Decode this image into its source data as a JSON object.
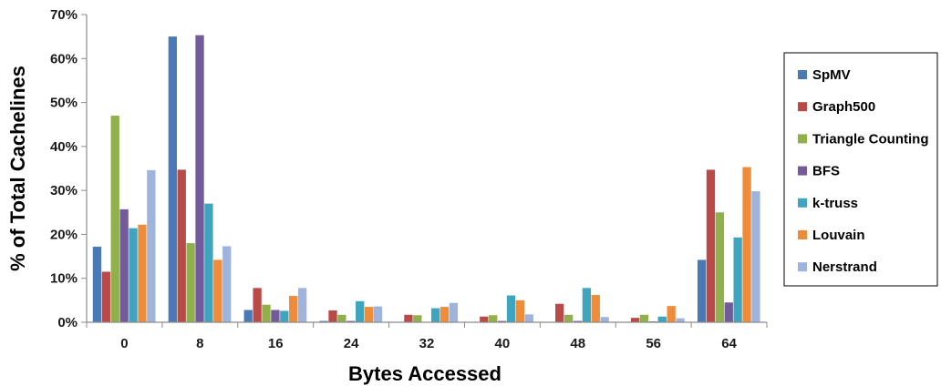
{
  "chart_data": {
    "type": "bar",
    "xlabel": "Bytes Accessed",
    "ylabel": "% of Total Cachelines",
    "ylim": [
      0,
      70
    ],
    "yticks": [
      "0%",
      "10%",
      "20%",
      "30%",
      "40%",
      "50%",
      "60%",
      "70%"
    ],
    "categories": [
      "0",
      "8",
      "16",
      "24",
      "32",
      "40",
      "48",
      "56",
      "64"
    ],
    "grid": false,
    "legend_position": "right",
    "series": [
      {
        "name": "SpMV",
        "color": "#4a7ab5",
        "values": [
          17.2,
          65.0,
          2.8,
          0.3,
          0.1,
          0.1,
          0.1,
          0.1,
          14.2
        ]
      },
      {
        "name": "Graph500",
        "color": "#b94a48",
        "values": [
          11.5,
          34.7,
          7.8,
          2.7,
          1.7,
          1.3,
          4.2,
          1.0,
          34.7
        ]
      },
      {
        "name": "Triangle Counting",
        "color": "#8fb04a",
        "values": [
          47.0,
          18.0,
          4.0,
          1.7,
          1.6,
          1.6,
          1.7,
          1.7,
          25.0
        ]
      },
      {
        "name": "BFS",
        "color": "#735a9a",
        "values": [
          25.7,
          65.3,
          2.8,
          0.3,
          0.1,
          0.3,
          0.3,
          0.2,
          4.5
        ]
      },
      {
        "name": "k-truss",
        "color": "#3fa5bf",
        "values": [
          21.4,
          27.0,
          2.6,
          4.8,
          3.2,
          6.1,
          7.8,
          1.3,
          19.3
        ]
      },
      {
        "name": "Louvain",
        "color": "#ee8c3a",
        "values": [
          22.2,
          14.2,
          6.0,
          3.5,
          3.5,
          5.0,
          6.2,
          3.7,
          35.3
        ]
      },
      {
        "name": "Nerstrand",
        "color": "#9fb4dc",
        "values": [
          34.6,
          17.3,
          7.8,
          3.6,
          4.4,
          1.8,
          1.2,
          0.9,
          29.8
        ]
      }
    ]
  }
}
